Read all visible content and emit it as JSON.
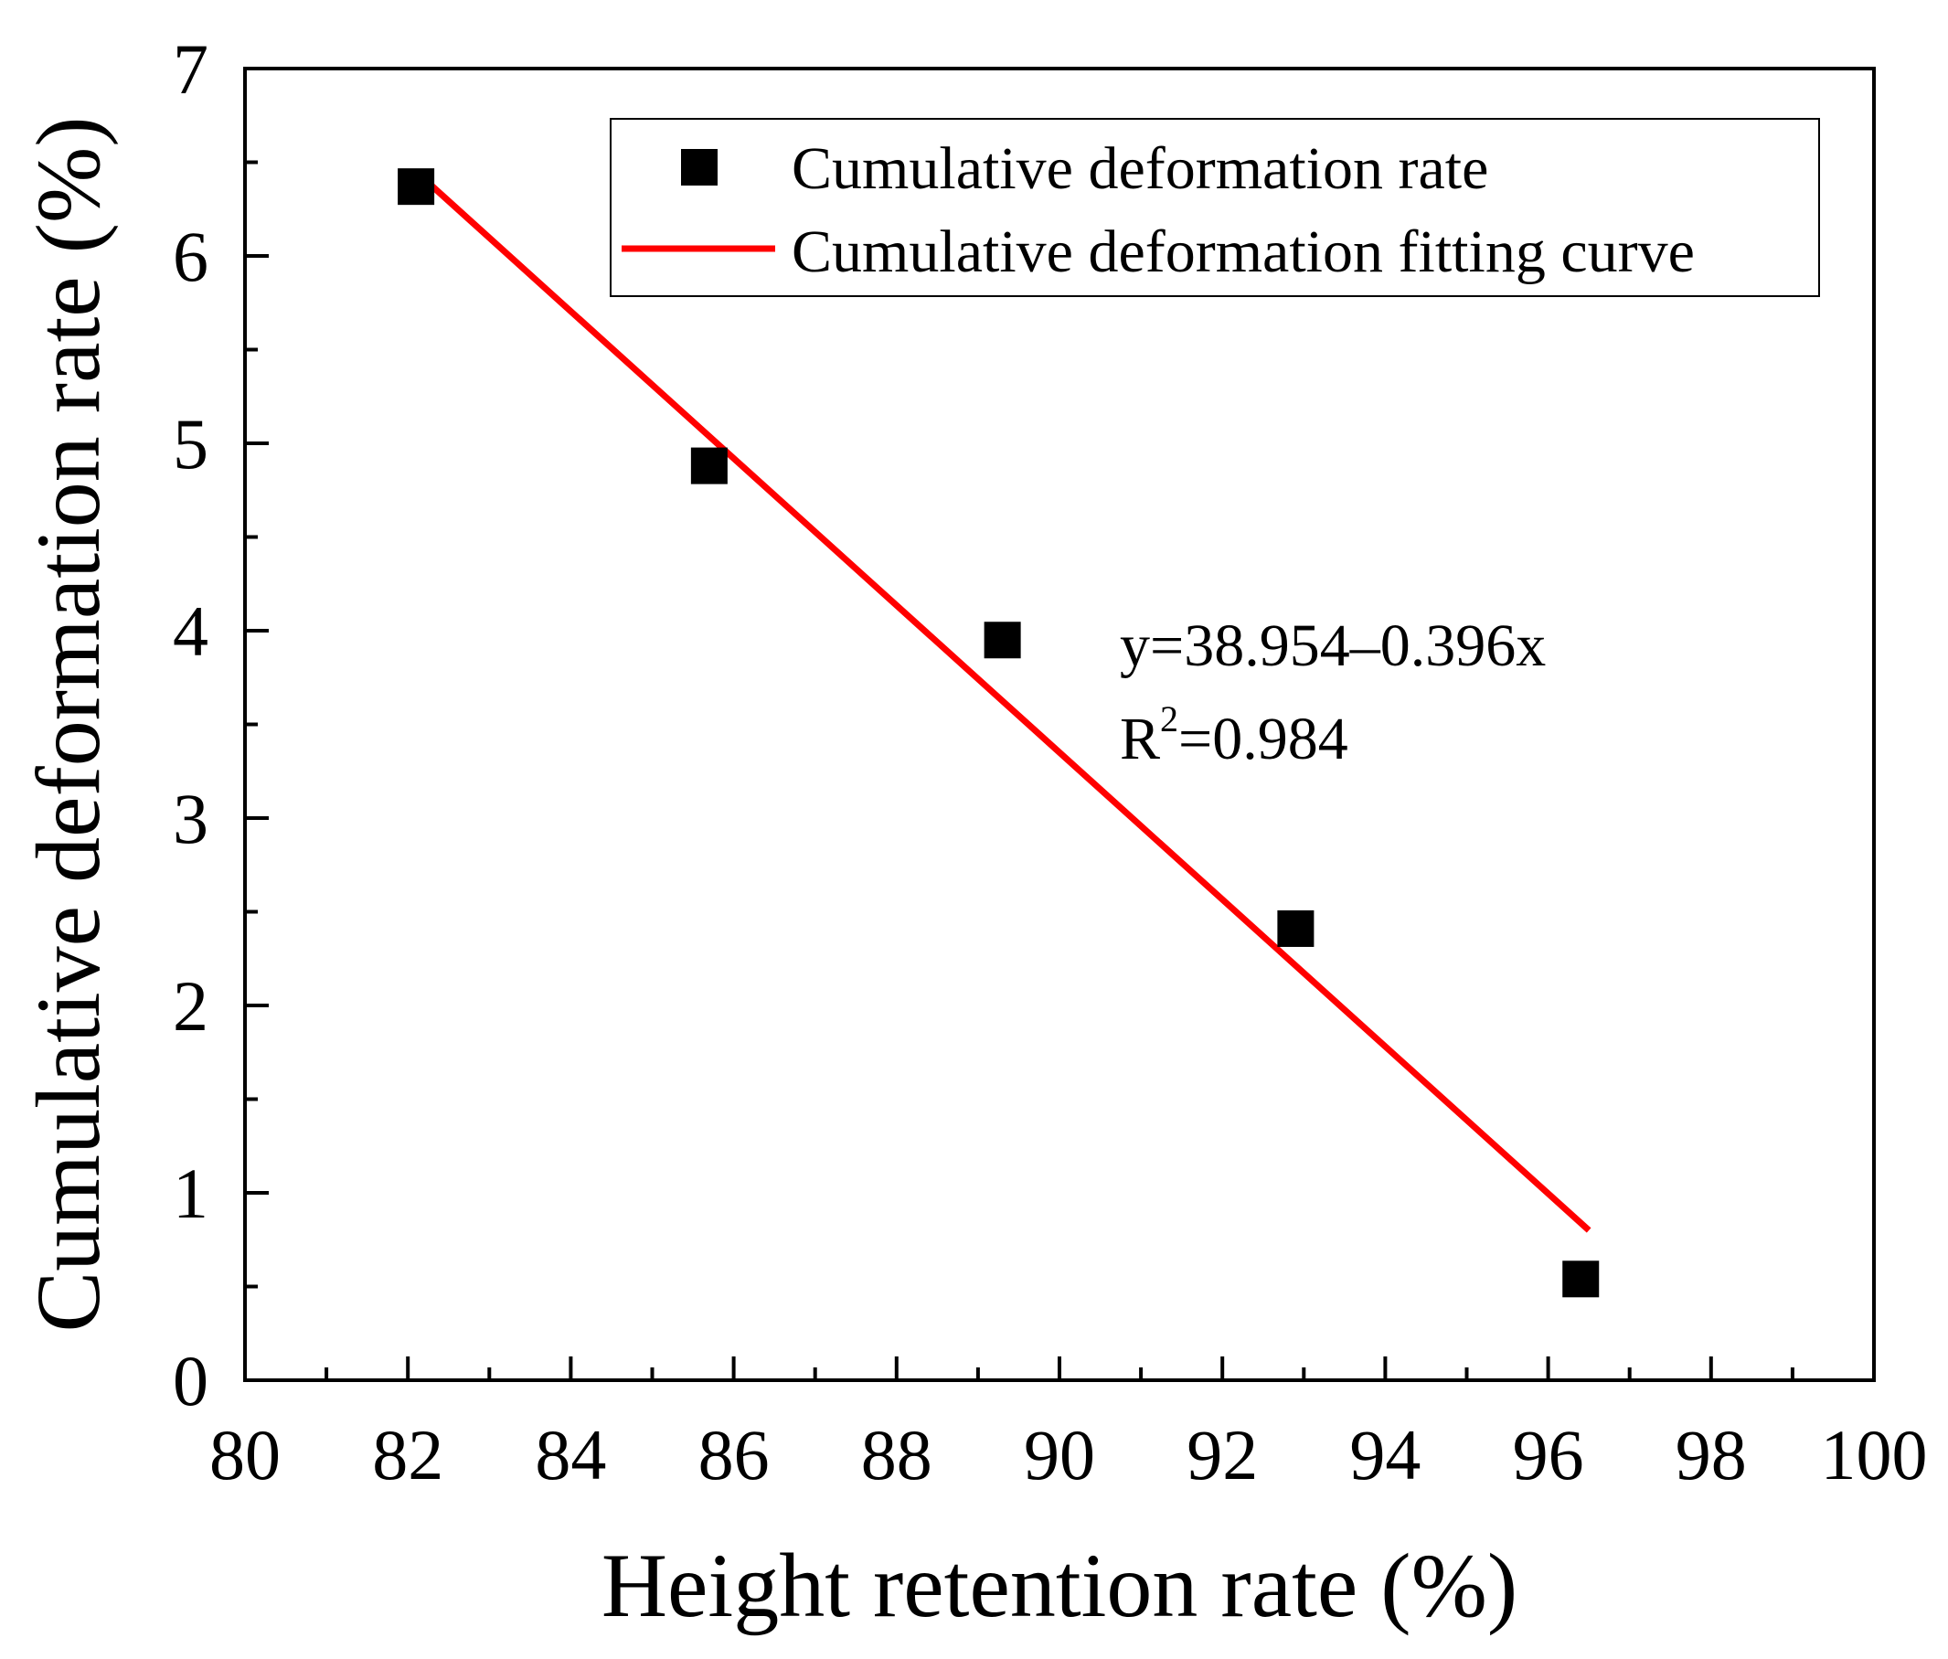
{
  "chart_data": {
    "type": "scatter",
    "title": "",
    "xlabel": "Height retention rate (%)",
    "ylabel": "Cumulative deformation rate (%)",
    "xlim": [
      80,
      100
    ],
    "ylim": [
      0,
      7
    ],
    "x_major_ticks": [
      80,
      82,
      84,
      86,
      88,
      90,
      92,
      94,
      96,
      98,
      100
    ],
    "y_major_ticks": [
      0,
      1,
      2,
      3,
      4,
      5,
      6,
      7
    ],
    "x_tick_labels": [
      "80",
      "82",
      "84",
      "86",
      "88",
      "90",
      "92",
      "94",
      "96",
      "98",
      "100"
    ],
    "y_tick_labels": [
      "0",
      "1",
      "2",
      "3",
      "4",
      "5",
      "6",
      "7"
    ],
    "grid": false,
    "legend_position": "top-right",
    "series": [
      {
        "name": "Cumulative deformation rate",
        "kind": "scatter",
        "marker": "square",
        "color": "#000000",
        "x": [
          82.1,
          85.7,
          89.3,
          92.9,
          96.4
        ],
        "y": [
          6.37,
          4.88,
          3.95,
          2.41,
          0.54
        ]
      },
      {
        "name": "Cumulative deformation fitting curve",
        "kind": "line",
        "color": "#ff0000",
        "x": [
          82.1,
          96.5
        ],
        "y": [
          6.45,
          0.8
        ]
      }
    ],
    "annotations": [
      {
        "text": "y=38.954–0.396x"
      },
      {
        "text": "R",
        "sup": "2",
        "rest": "=0.984"
      }
    ]
  }
}
